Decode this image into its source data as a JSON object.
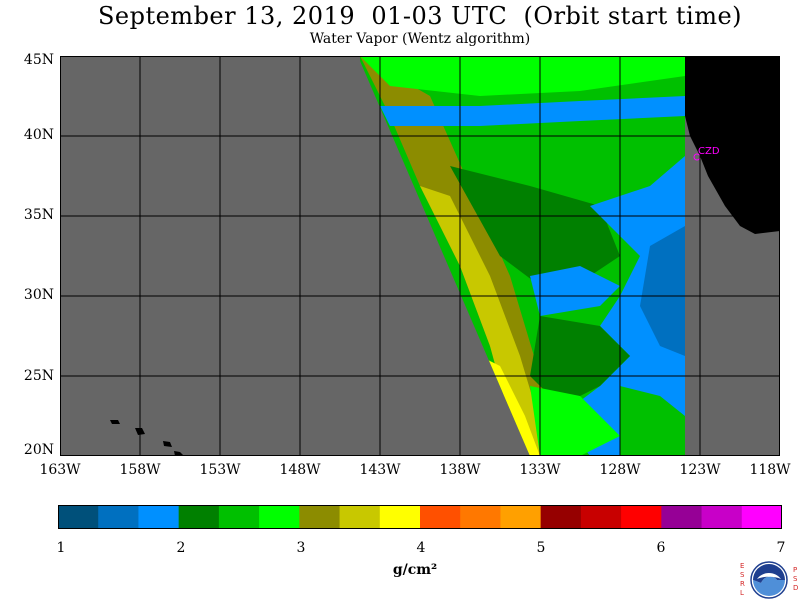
{
  "title": "September 13, 2019  01-03 UTC  (Orbit start time)",
  "subtitle": "Water Vapor (Wentz algorithm)",
  "station_label": "CZD",
  "lat_labels": [
    "45N",
    "40N",
    "35N",
    "30N",
    "25N",
    "20N"
  ],
  "lon_labels": [
    "163W",
    "158W",
    "153W",
    "148W",
    "143W",
    "138W",
    "133W",
    "128W",
    "123W",
    "118W"
  ],
  "colorbar": {
    "labels": [
      "1",
      "2",
      "3",
      "4",
      "5",
      "6",
      "7"
    ],
    "units": "g/cm²",
    "colors": [
      "#00507a",
      "#0070c0",
      "#0090ff",
      "#008000",
      "#00c000",
      "#00ff00",
      "#8c8c00",
      "#c8c800",
      "#ffff00",
      "#ff5000",
      "#ff7800",
      "#ffa000",
      "#960000",
      "#c80000",
      "#ff0000",
      "#960096",
      "#c800c8",
      "#ff00ff"
    ]
  },
  "map_colors": {
    "no_data": "#666666",
    "land": "#000000",
    "island": "#000000"
  },
  "logo": {
    "left_letters": [
      "E",
      "S",
      "R",
      "L"
    ],
    "right_letters": [
      "P",
      "S",
      "D"
    ],
    "text": "NOAA"
  }
}
